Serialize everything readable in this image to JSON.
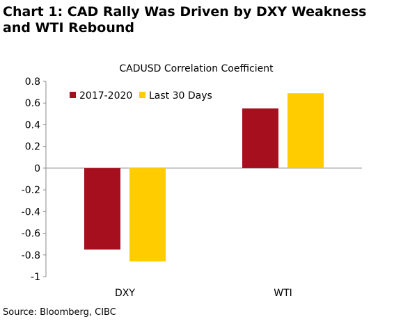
{
  "header": {
    "title": "Chart 1: CAD Rally Was Driven by DXY Weakness and WTI Rebound"
  },
  "footer": {
    "source": "Source: Bloomberg, CIBC"
  },
  "chart_data": {
    "type": "bar",
    "title": "CADUSD Correlation Coefficient",
    "categories": [
      "DXY",
      "WTI"
    ],
    "series": [
      {
        "name": "2017-2020",
        "values": [
          -0.75,
          0.55
        ],
        "color": "#a50f1e"
      },
      {
        "name": "Last 30 Days",
        "values": [
          -0.86,
          0.69
        ],
        "color": "#ffcc00"
      }
    ],
    "ylim": [
      -1,
      0.8
    ],
    "yticks": [
      0.8,
      0.6,
      0.4,
      0.2,
      0,
      -0.2,
      -0.4,
      -0.6,
      -0.8,
      -1
    ],
    "ytick_labels": [
      "0.8",
      "0.6",
      "0.4",
      "0.2",
      "0",
      "-0.2",
      "-0.4",
      "-0.6",
      "-0.8",
      "-1"
    ],
    "xlabel": "",
    "ylabel": "",
    "grid": false,
    "legend": "top-left"
  }
}
